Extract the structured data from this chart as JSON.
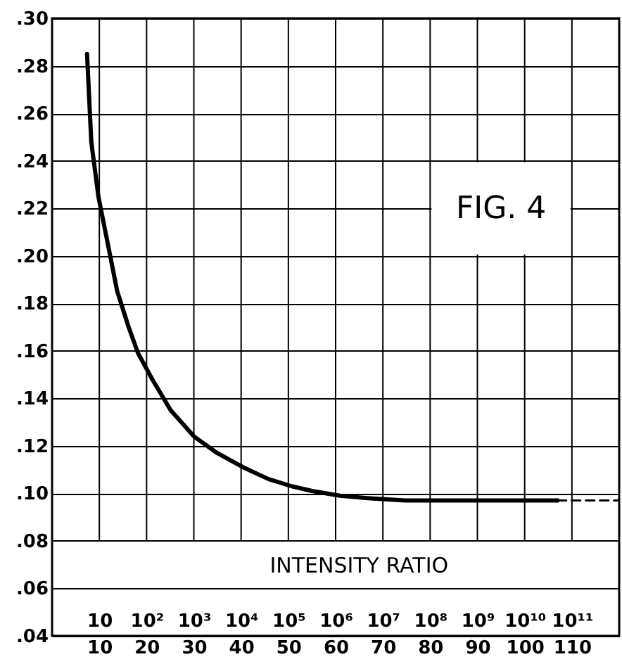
{
  "chart_data": {
    "type": "line",
    "xlim": [
      0,
      120
    ],
    "xticks": [
      10,
      20,
      30,
      40,
      50,
      60,
      70,
      80,
      90,
      100,
      110
    ],
    "x2lim": [
      1,
      1000000000000
    ],
    "x2ticks": [
      10,
      {
        "value": 100,
        "label": "10²"
      },
      {
        "value": 1000,
        "label": "10³"
      },
      {
        "value": 10000,
        "label": "10⁴"
      },
      {
        "value": 100000,
        "label": "10⁵"
      },
      {
        "value": 1000000,
        "label": "10⁶"
      },
      {
        "value": 10000000,
        "label": "10⁷"
      },
      {
        "value": 100000000,
        "label": "10⁸"
      },
      {
        "value": 1000000000,
        "label": "10⁹"
      },
      {
        "value": 10000000000,
        "label": "10¹⁰"
      },
      {
        "value": 100000000000,
        "label": "10¹¹"
      }
    ],
    "x2label": "INTENSITY RATIO",
    "log": "x2",
    "ylim": [
      0.04,
      0.3
    ],
    "yticks": [
      {
        "value": 0.04,
        "label": ".04"
      },
      {
        "value": 0.06,
        "label": ".06"
      },
      {
        "value": 0.08,
        "label": ".08"
      },
      {
        "value": 0.1,
        "label": ".10"
      },
      {
        "value": 0.12,
        "label": ".12"
      },
      {
        "value": 0.14,
        "label": ".14"
      },
      {
        "value": 0.16,
        "label": ".16"
      },
      {
        "value": 0.18,
        "label": ".18"
      },
      {
        "value": 0.2,
        "label": ".20"
      },
      {
        "value": 0.22,
        "label": ".22"
      },
      {
        "value": 0.24,
        "label": ".24"
      },
      {
        "value": 0.26,
        "label": ".26"
      },
      {
        "value": 0.28,
        "label": ".28"
      },
      {
        "value": 0.3,
        "label": ".30"
      }
    ],
    "grid": true,
    "annotations": [
      "FIG. 4"
    ],
    "series": [
      {
        "color": "#000000",
        "x": [
          7.4,
          8.3,
          9.8,
          11.8,
          13.8,
          16.2,
          18.2,
          21.2,
          25.1,
          30.0,
          34.9,
          40.4,
          45.8,
          50.7,
          55.0,
          60.9,
          66.8,
          74.7,
          85,
          95,
          107
        ],
        "values": [
          0.285,
          0.248,
          0.225,
          0.205,
          0.185,
          0.17,
          0.159,
          0.148,
          0.135,
          0.124,
          0.117,
          0.111,
          0.106,
          0.103,
          0.101,
          0.099,
          0.098,
          0.097,
          0.097,
          0.097,
          0.097
        ]
      },
      {
        "color": "#000000",
        "line_style": "dashed",
        "x": [
          107,
          120
        ],
        "values": [
          0.097,
          0.097
        ]
      }
    ]
  }
}
